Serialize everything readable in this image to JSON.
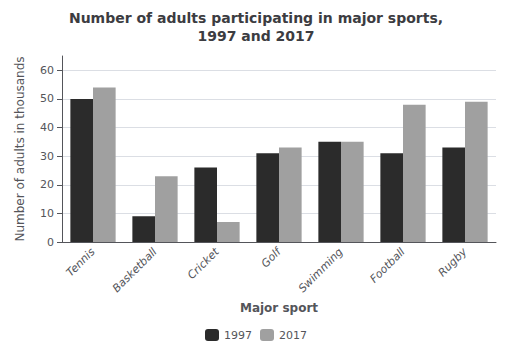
{
  "chart_data": {
    "type": "bar",
    "title": "Number of adults participating in major sports,\n1997 and 2017",
    "xlabel": "Major sport",
    "ylabel": "Number of adults in thousands",
    "categories": [
      "Tennis",
      "Basketball",
      "Cricket",
      "Golf",
      "Swimming",
      "Football",
      "Rugby"
    ],
    "series": [
      {
        "name": "1997",
        "color": "#2b2b2b",
        "values": [
          50,
          9,
          26,
          31,
          35,
          31,
          33
        ]
      },
      {
        "name": "2017",
        "color": "#a0a0a0",
        "values": [
          54,
          23,
          7,
          33,
          35,
          48,
          49
        ]
      }
    ],
    "ylim": [
      0,
      65
    ],
    "yticks": [
      0,
      10,
      20,
      30,
      40,
      50,
      60
    ],
    "grid": true,
    "legend": "bottom"
  }
}
